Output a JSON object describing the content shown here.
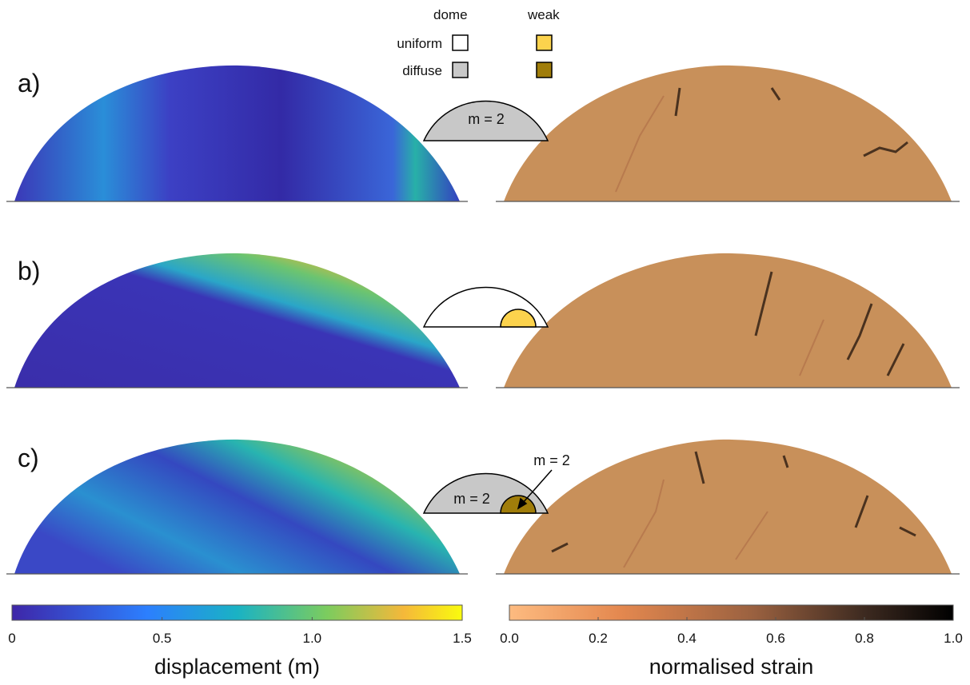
{
  "legend": {
    "columns": [
      "dome",
      "weak"
    ],
    "rows": [
      "uniform",
      "diffuse"
    ]
  },
  "panels": [
    {
      "label": "a)",
      "schematic_labels": [
        "m = 2"
      ]
    },
    {
      "label": "b)",
      "schematic_labels": []
    },
    {
      "label": "c)",
      "schematic_labels": [
        "m = 2",
        "m = 2"
      ]
    }
  ],
  "colorbars": [
    {
      "title": "displacement (m)",
      "lim": [
        0,
        1.5
      ],
      "ticks": [
        0,
        0.5,
        {
          "value": 1,
          "label": "1.0"
        },
        1.5
      ]
    },
    {
      "title": "normalised strain",
      "lim": [
        0,
        1
      ],
      "ticks": [
        {
          "value": 0,
          "label": "0.0"
        },
        0.2,
        0.4,
        0.6,
        0.8,
        {
          "value": 1,
          "label": "1.0"
        }
      ]
    }
  ]
}
